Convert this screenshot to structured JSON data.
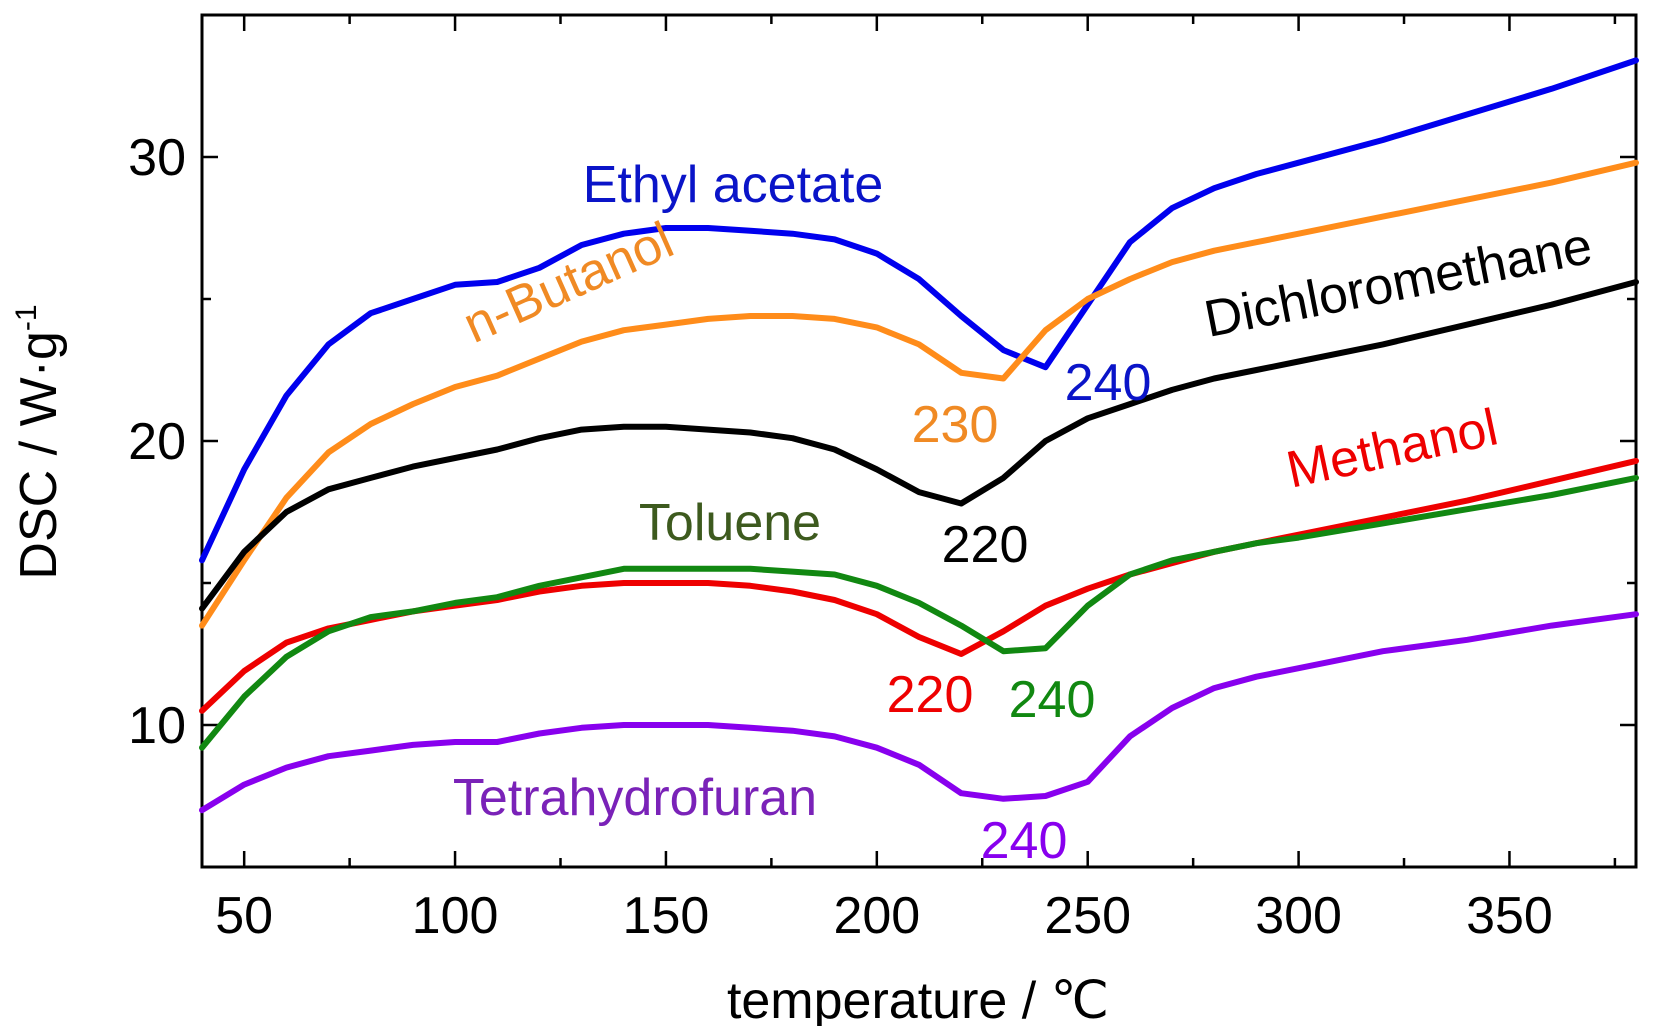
{
  "chart_data": {
    "type": "line",
    "xlabel": "temperature / ℃",
    "ylabel": "DSC / W·g",
    "ylabel_sup": "-1",
    "xlim": [
      40,
      380
    ],
    "ylim": [
      5,
      35
    ],
    "xticks": [
      50,
      100,
      150,
      200,
      250,
      300,
      350
    ],
    "yticks": [
      10,
      20,
      30
    ],
    "xtick_labels": [
      "50",
      "100",
      "150",
      "200",
      "250",
      "300",
      "350"
    ],
    "ytick_labels": [
      "10",
      "20",
      "30"
    ],
    "grid": false,
    "series": [
      {
        "name": "Ethyl acetate",
        "color": "#0000ee",
        "x": [
          40,
          50,
          60,
          70,
          80,
          90,
          100,
          110,
          120,
          130,
          140,
          150,
          160,
          170,
          180,
          190,
          200,
          210,
          220,
          230,
          240,
          250,
          260,
          270,
          280,
          290,
          300,
          320,
          340,
          360,
          380
        ],
        "y": [
          15.8,
          19.0,
          21.6,
          23.4,
          24.5,
          25.0,
          25.5,
          25.6,
          26.1,
          26.9,
          27.3,
          27.5,
          27.5,
          27.4,
          27.3,
          27.1,
          26.6,
          25.7,
          24.4,
          23.2,
          22.6,
          24.8,
          27.0,
          28.2,
          28.9,
          29.4,
          29.8,
          30.6,
          31.5,
          32.4,
          33.4
        ]
      },
      {
        "name": "n-Butanol",
        "color": "#ff8c1a",
        "x": [
          40,
          50,
          60,
          70,
          80,
          90,
          100,
          110,
          120,
          130,
          140,
          150,
          160,
          170,
          180,
          190,
          200,
          210,
          220,
          230,
          240,
          250,
          260,
          270,
          280,
          290,
          300,
          320,
          340,
          360,
          380
        ],
        "y": [
          13.5,
          15.8,
          18.0,
          19.6,
          20.6,
          21.3,
          21.9,
          22.3,
          22.9,
          23.5,
          23.9,
          24.1,
          24.3,
          24.4,
          24.4,
          24.3,
          24.0,
          23.4,
          22.4,
          22.2,
          23.9,
          25.0,
          25.7,
          26.3,
          26.7,
          27.0,
          27.3,
          27.9,
          28.5,
          29.1,
          29.8
        ]
      },
      {
        "name": "Dichloromethane",
        "color": "#000000",
        "x": [
          40,
          50,
          60,
          70,
          80,
          90,
          100,
          110,
          120,
          130,
          140,
          150,
          160,
          170,
          180,
          190,
          200,
          210,
          220,
          230,
          240,
          250,
          260,
          270,
          280,
          290,
          300,
          320,
          340,
          360,
          380
        ],
        "y": [
          14.1,
          16.1,
          17.5,
          18.3,
          18.7,
          19.1,
          19.4,
          19.7,
          20.1,
          20.4,
          20.5,
          20.5,
          20.4,
          20.3,
          20.1,
          19.7,
          19.0,
          18.2,
          17.8,
          18.7,
          20.0,
          20.8,
          21.3,
          21.8,
          22.2,
          22.5,
          22.8,
          23.4,
          24.1,
          24.8,
          25.6
        ]
      },
      {
        "name": "Methanol",
        "color": "#ee0000",
        "x": [
          40,
          50,
          60,
          70,
          80,
          90,
          100,
          110,
          120,
          130,
          140,
          150,
          160,
          170,
          180,
          190,
          200,
          210,
          220,
          230,
          240,
          250,
          260,
          270,
          280,
          290,
          300,
          320,
          340,
          360,
          380
        ],
        "y": [
          10.5,
          11.9,
          12.9,
          13.4,
          13.7,
          14.0,
          14.2,
          14.4,
          14.7,
          14.9,
          15.0,
          15.0,
          15.0,
          14.9,
          14.7,
          14.4,
          13.9,
          13.1,
          12.5,
          13.3,
          14.2,
          14.8,
          15.3,
          15.7,
          16.1,
          16.4,
          16.7,
          17.3,
          17.9,
          18.6,
          19.3
        ]
      },
      {
        "name": "Toluene",
        "color": "#118811",
        "x": [
          40,
          50,
          60,
          70,
          80,
          90,
          100,
          110,
          120,
          130,
          140,
          150,
          160,
          170,
          180,
          190,
          200,
          210,
          220,
          230,
          240,
          250,
          260,
          270,
          280,
          290,
          300,
          320,
          340,
          360,
          380
        ],
        "y": [
          9.2,
          11.0,
          12.4,
          13.3,
          13.8,
          14.0,
          14.3,
          14.5,
          14.9,
          15.2,
          15.5,
          15.5,
          15.5,
          15.5,
          15.4,
          15.3,
          14.9,
          14.3,
          13.5,
          12.6,
          12.7,
          14.2,
          15.3,
          15.8,
          16.1,
          16.4,
          16.6,
          17.1,
          17.6,
          18.1,
          18.7
        ]
      },
      {
        "name": "Tetrahydrofuran",
        "color": "#8800ee",
        "x": [
          40,
          50,
          60,
          70,
          80,
          90,
          100,
          110,
          120,
          130,
          140,
          150,
          160,
          170,
          180,
          190,
          200,
          210,
          220,
          230,
          240,
          250,
          260,
          270,
          280,
          290,
          300,
          320,
          340,
          360,
          380
        ],
        "y": [
          7.0,
          7.9,
          8.5,
          8.9,
          9.1,
          9.3,
          9.4,
          9.4,
          9.7,
          9.9,
          10.0,
          10.0,
          10.0,
          9.9,
          9.8,
          9.6,
          9.2,
          8.6,
          7.6,
          7.4,
          7.5,
          8.0,
          9.6,
          10.6,
          11.3,
          11.7,
          12.0,
          12.6,
          13.0,
          13.5,
          13.9
        ]
      }
    ],
    "series_labels": [
      {
        "text": "Ethyl acetate",
        "color": "#0a14c8",
        "rotation": 0
      },
      {
        "text": "n-Butanol",
        "color": "#f08a24",
        "rotation": -24
      },
      {
        "text": "Dichloromethane",
        "color": "#000000",
        "rotation": -11
      },
      {
        "text": "Toluene",
        "color": "#3d5a1e",
        "rotation": 0
      },
      {
        "text": "Methanol",
        "color": "#ee0000",
        "rotation": -12
      },
      {
        "text": "Tetrahydrofuran",
        "color": "#7a22b8",
        "rotation": 0
      }
    ],
    "annotations": [
      {
        "text": "240",
        "color": "#0a14c8",
        "series": "Ethyl acetate"
      },
      {
        "text": "230",
        "color": "#f08a24",
        "series": "n-Butanol"
      },
      {
        "text": "220",
        "color": "#000000",
        "series": "Dichloromethane"
      },
      {
        "text": "220",
        "color": "#ee0000",
        "series": "Methanol"
      },
      {
        "text": "240",
        "color": "#118811",
        "series": "Toluene"
      },
      {
        "text": "240",
        "color": "#8800ee",
        "series": "Tetrahydrofuran"
      }
    ]
  }
}
